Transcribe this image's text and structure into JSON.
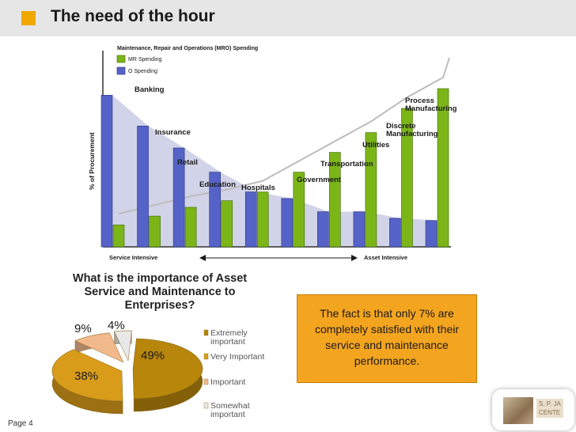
{
  "header": {
    "title": "The need of the hour",
    "accent_color": "#f0a800",
    "bar_color": "#e6e6e6"
  },
  "mro_chart": {
    "legend_title": "Maintenance, Repair and Operations (MRO) Spending",
    "legend_mr": "MR Spending",
    "legend_o": "O  Spending",
    "y_axis_label": "% of Procurement",
    "x_left_label": "Service Intensive",
    "x_right_label": "Asset  Intensive",
    "colors": {
      "mr": "#7cb518",
      "o": "#5563c8"
    }
  },
  "chart_data": [
    {
      "type": "bar",
      "ylabel": "% of Procurement",
      "categories": [
        "Banking",
        "Insurance",
        "Retail",
        "Education",
        "Hospitals",
        "Government",
        "Transportation",
        "Utilities",
        "Discrete Manufacturing",
        "Process Manufacturing"
      ],
      "series": [
        {
          "name": "MR Spending",
          "values": [
            10,
            14,
            18,
            21,
            25,
            34,
            43,
            52,
            63,
            72
          ]
        },
        {
          "name": "O  Spending",
          "values": [
            69,
            55,
            45,
            34,
            25,
            22,
            16,
            16,
            13,
            12
          ]
        }
      ],
      "display_labels": [
        "Banking",
        "Insurance",
        "Retail",
        "Education",
        "Hospitals",
        "Government",
        "Transportation",
        "Utilities",
        "Discrete\nManufacturing",
        "Process\nManufacturing"
      ]
    },
    {
      "type": "pie",
      "title": "What is the importance of Asset Service and Maintenance to Enterprises?",
      "categories": [
        "Extremely Important",
        "Very Important",
        "Important",
        "Somewhat Important"
      ],
      "values": [
        49,
        38,
        9,
        4
      ],
      "value_labels": [
        "49%",
        "38%",
        "9%",
        "4%"
      ],
      "colors": [
        "#b8860b",
        "#d89c1a",
        "#f2b98c",
        "#e8e8e8"
      ]
    }
  ],
  "pie_title_lines": [
    "What is the importance of Asset",
    "Service and Maintenance to",
    "Enterprises?"
  ],
  "legend_items": [
    {
      "label_lines": [
        "Extremely",
        "important"
      ],
      "color": "#b8860b"
    },
    {
      "label_lines": [
        "Very Important"
      ],
      "color": "#d89c1a"
    },
    {
      "label_lines": [
        "Important"
      ],
      "color": "#f2b98c"
    },
    {
      "label_lines": [
        "Somewhat",
        "important"
      ],
      "color": "#e8e8e8"
    }
  ],
  "callout": {
    "text": "The fact is that only 7% are completely satisfied with their service and maintenance performance."
  },
  "footer": {
    "page_label": "Page 4",
    "logo_text_line1": "S. P. JA",
    "logo_text_line2": "CENTE"
  }
}
